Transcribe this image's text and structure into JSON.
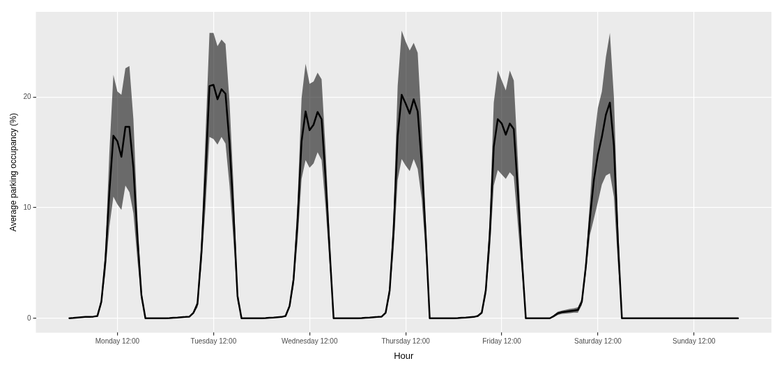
{
  "chart_data": {
    "type": "line",
    "xlabel": "Hour",
    "ylabel": "Average parking occupancy (%)",
    "categories": [
      null,
      null,
      null,
      null,
      null,
      null,
      null,
      null,
      null,
      null,
      null,
      null,
      "Monday 12:00",
      null,
      null,
      null,
      null,
      null,
      null,
      null,
      null,
      null,
      null,
      null,
      null,
      null,
      null,
      null,
      null,
      null,
      null,
      null,
      null,
      null,
      null,
      null,
      "Tuesday 12:00",
      null,
      null,
      null,
      null,
      null,
      null,
      null,
      null,
      null,
      null,
      null,
      null,
      null,
      null,
      null,
      null,
      null,
      null,
      null,
      null,
      null,
      null,
      null,
      "Wednesday 12:00",
      null,
      null,
      null,
      null,
      null,
      null,
      null,
      null,
      null,
      null,
      null,
      null,
      null,
      null,
      null,
      null,
      null,
      null,
      null,
      null,
      null,
      null,
      null,
      "Thursday 12:00",
      null,
      null,
      null,
      null,
      null,
      null,
      null,
      null,
      null,
      null,
      null,
      null,
      null,
      null,
      null,
      null,
      null,
      null,
      null,
      null,
      null,
      null,
      null,
      "Friday 12:00",
      null,
      null,
      null,
      null,
      null,
      null,
      null,
      null,
      null,
      null,
      null,
      null,
      null,
      null,
      null,
      null,
      null,
      null,
      null,
      null,
      null,
      null,
      null,
      "Saturday 12:00",
      null,
      null,
      null,
      null,
      null,
      null,
      null,
      null,
      null,
      null,
      null,
      null,
      null,
      null,
      null,
      null,
      null,
      null,
      null,
      null,
      null,
      null,
      null,
      "Sunday 12:00",
      null,
      null,
      null,
      null,
      null,
      null,
      null,
      null,
      null,
      null,
      null
    ],
    "ylim": [
      -1.3,
      27.7
    ],
    "yticks": [
      0,
      10,
      20
    ],
    "grid": true,
    "marker": "none",
    "line_style": "solid",
    "series": [
      {
        "color": "#000000",
        "values": [
          0,
          0.03,
          0.07,
          0.1,
          0.12,
          0.13,
          0.15,
          0.2,
          1.5,
          5.2,
          11.4,
          16.5,
          16,
          14.6,
          17.3,
          17.3,
          13.6,
          7.3,
          2.1,
          0,
          0,
          0,
          0,
          0,
          0,
          0.02,
          0.05,
          0.07,
          0.1,
          0.12,
          0.15,
          0.5,
          1.3,
          6,
          13,
          21,
          21.1,
          19.8,
          20.7,
          20.3,
          15.8,
          9.5,
          2,
          0,
          0,
          0,
          0,
          0,
          0,
          0.02,
          0.05,
          0.07,
          0.1,
          0.12,
          0.2,
          1.1,
          3.5,
          8.8,
          16,
          18.7,
          17,
          17.5,
          18.65,
          18,
          12.6,
          6.2,
          0,
          0,
          0,
          0,
          0,
          0,
          0,
          0.02,
          0.05,
          0.07,
          0.1,
          0.12,
          0.15,
          0.5,
          2.5,
          8,
          16.5,
          20.2,
          19.4,
          18.5,
          19.8,
          18.7,
          14,
          7.5,
          0,
          0,
          0,
          0,
          0,
          0,
          0,
          0.02,
          0.05,
          0.07,
          0.1,
          0.12,
          0.2,
          0.5,
          2.5,
          7.5,
          15.5,
          18,
          17.6,
          16.6,
          17.6,
          17.1,
          11.6,
          5.5,
          0,
          0,
          0,
          0,
          0,
          0,
          0,
          0.2,
          0.45,
          0.55,
          0.6,
          0.65,
          0.7,
          0.75,
          1.5,
          4.7,
          9,
          12.5,
          14.8,
          16.4,
          18.4,
          19.5,
          15.6,
          7,
          0,
          0,
          0,
          0,
          0,
          0,
          0,
          0,
          0,
          0,
          0,
          0,
          0,
          0,
          0,
          0,
          0,
          0,
          0,
          0,
          0,
          0,
          0,
          0,
          0,
          0,
          0,
          0,
          0,
          0
        ],
        "lower": [
          0,
          0.03,
          0.07,
          0.1,
          0.12,
          0.13,
          0.12,
          0.15,
          1.2,
          4.1,
          8.3,
          11,
          10.3,
          9.8,
          12,
          11.4,
          9.5,
          5.3,
          1.6,
          0,
          0,
          0,
          0,
          0,
          0,
          0.02,
          0.05,
          0.07,
          0.1,
          0.12,
          0.12,
          0.4,
          1,
          4.8,
          10,
          16.4,
          16.2,
          15.7,
          16.4,
          15.8,
          12,
          7,
          1.5,
          0,
          0,
          0,
          0,
          0,
          0,
          0.02,
          0.05,
          0.07,
          0.1,
          0.12,
          0.15,
          0.9,
          2.9,
          7,
          12.6,
          14.3,
          13.6,
          14,
          15,
          14.3,
          10,
          4.9,
          0,
          0,
          0,
          0,
          0,
          0,
          0,
          0.02,
          0.05,
          0.07,
          0.1,
          0.12,
          0.12,
          0.4,
          2,
          6.3,
          12.5,
          14.4,
          13.8,
          13.3,
          14.4,
          13.5,
          10.8,
          5.9,
          0,
          0,
          0,
          0,
          0,
          0,
          0,
          0.02,
          0.05,
          0.07,
          0.1,
          0.12,
          0.12,
          0.4,
          2,
          6,
          12,
          13.4,
          13,
          12.6,
          13.2,
          12.8,
          8.5,
          4.2,
          0,
          0,
          0,
          0,
          0,
          0,
          0,
          0.1,
          0.3,
          0.4,
          0.42,
          0.45,
          0.5,
          0.5,
          1.2,
          4,
          7.5,
          9,
          10.5,
          12.1,
          12.9,
          13.1,
          11,
          5,
          0,
          0,
          0,
          0,
          0,
          0,
          0,
          0,
          0,
          0,
          0,
          0,
          0,
          0,
          0,
          0,
          0,
          0,
          0,
          0,
          0,
          0,
          0,
          0,
          0,
          0,
          0,
          0,
          0,
          0
        ],
        "upper": [
          0,
          0.03,
          0.07,
          0.1,
          0.12,
          0.13,
          0.18,
          0.25,
          1.8,
          6.2,
          15,
          22,
          20.5,
          20.2,
          22.6,
          22.8,
          18,
          9.2,
          2.6,
          0,
          0,
          0,
          0,
          0,
          0,
          0.02,
          0.05,
          0.07,
          0.1,
          0.12,
          0.18,
          0.6,
          1.6,
          7.3,
          16.5,
          25.8,
          25.8,
          24.6,
          25.2,
          24.8,
          19.6,
          12,
          2.5,
          0,
          0,
          0,
          0,
          0,
          0,
          0.02,
          0.05,
          0.07,
          0.1,
          0.12,
          0.25,
          1.3,
          4.1,
          10.6,
          19.9,
          23,
          21.2,
          21.4,
          22.2,
          21.6,
          15.2,
          7.5,
          0,
          0,
          0,
          0,
          0,
          0,
          0,
          0.02,
          0.05,
          0.07,
          0.1,
          0.12,
          0.2,
          0.6,
          3,
          9.8,
          21,
          26,
          25,
          24.2,
          24.9,
          24,
          17.3,
          9.1,
          0,
          0,
          0,
          0,
          0,
          0,
          0,
          0.02,
          0.05,
          0.07,
          0.1,
          0.12,
          0.28,
          0.6,
          3,
          9.1,
          19.5,
          22.4,
          21.5,
          20.6,
          22.4,
          21.5,
          14.5,
          6.8,
          0,
          0,
          0,
          0,
          0,
          0,
          0,
          0.3,
          0.6,
          0.7,
          0.78,
          0.85,
          0.9,
          1,
          1.8,
          5.4,
          10.5,
          16,
          19,
          20.5,
          23.6,
          25.8,
          20,
          9,
          0,
          0,
          0,
          0,
          0,
          0,
          0,
          0,
          0,
          0,
          0,
          0,
          0,
          0,
          0,
          0,
          0,
          0,
          0,
          0,
          0,
          0,
          0,
          0,
          0,
          0,
          0,
          0,
          0,
          0
        ]
      }
    ]
  }
}
